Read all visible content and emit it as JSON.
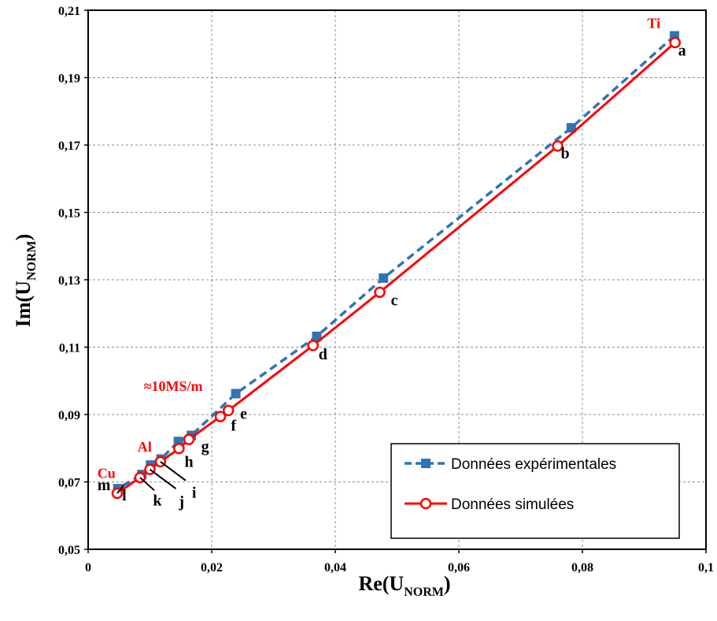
{
  "chart_data": {
    "type": "line",
    "xlabel_main": "Re(U",
    "xlabel_sub": "NORM",
    "xlabel_end": ")",
    "ylabel_main": "Im(U",
    "ylabel_sub": "NORM",
    "ylabel_end": ")",
    "xlim": [
      0,
      0.1
    ],
    "ylim": [
      0.05,
      0.21
    ],
    "x_ticks": [
      {
        "v": 0,
        "label": "0"
      },
      {
        "v": 0.02,
        "label": "0,02"
      },
      {
        "v": 0.04,
        "label": "0,04"
      },
      {
        "v": 0.06,
        "label": "0,06"
      },
      {
        "v": 0.08,
        "label": "0,08"
      },
      {
        "v": 0.1,
        "label": "0,1"
      }
    ],
    "y_ticks": [
      {
        "v": 0.05,
        "label": "0,05"
      },
      {
        "v": 0.07,
        "label": "0,07"
      },
      {
        "v": 0.09,
        "label": "0,09"
      },
      {
        "v": 0.11,
        "label": "0,11"
      },
      {
        "v": 0.13,
        "label": "0,13"
      },
      {
        "v": 0.15,
        "label": "0,15"
      },
      {
        "v": 0.17,
        "label": "0,17"
      },
      {
        "v": 0.19,
        "label": "0,19"
      },
      {
        "v": 0.21,
        "label": "0,21"
      }
    ],
    "grid": true,
    "legend_position": "bottom-right",
    "series": [
      {
        "name": "Données expérimentales",
        "color": "#2e75b6",
        "line_style": "dashed",
        "marker": "square",
        "x": [
          0.0949,
          0.0782,
          0.0478,
          0.037,
          0.0239,
          0.0167,
          0.0146,
          0.0118,
          0.0101,
          0.0087,
          0.0048
        ],
        "y": [
          0.2024,
          0.1751,
          0.1305,
          0.1132,
          0.0962,
          0.0838,
          0.082,
          0.0768,
          0.075,
          0.0722,
          0.068
        ]
      },
      {
        "name": "Données simulées",
        "color": "#ff0000",
        "line_style": "solid",
        "marker": "open-circle",
        "x": [
          0.095,
          0.076,
          0.0472,
          0.0364,
          0.0227,
          0.0214,
          0.0163,
          0.0147,
          0.0117,
          0.01,
          0.0084,
          0.0047
        ],
        "y": [
          0.2004,
          0.1697,
          0.1263,
          0.1105,
          0.0912,
          0.0894,
          0.0826,
          0.0799,
          0.076,
          0.0737,
          0.0713,
          0.0666
        ]
      }
    ],
    "point_labels": [
      {
        "text": "a",
        "x": 0.0955,
        "y": 0.1965
      },
      {
        "text": "b",
        "x": 0.0765,
        "y": 0.166
      },
      {
        "text": "c",
        "x": 0.049,
        "y": 0.1224
      },
      {
        "text": "d",
        "x": 0.0373,
        "y": 0.1064
      },
      {
        "text": "e",
        "x": 0.0246,
        "y": 0.0887
      },
      {
        "text": "f",
        "x": 0.0231,
        "y": 0.0852
      },
      {
        "text": "g",
        "x": 0.0183,
        "y": 0.079
      },
      {
        "text": "h",
        "x": 0.0156,
        "y": 0.0745
      },
      {
        "text": "i",
        "x": 0.0168,
        "y": 0.0653
      },
      {
        "text": "j",
        "x": 0.0147,
        "y": 0.0626
      },
      {
        "text": "k",
        "x": 0.0105,
        "y": 0.063
      },
      {
        "text": "l",
        "x": 0.0055,
        "y": 0.0645
      },
      {
        "text": "m",
        "x": 0.0015,
        "y": 0.0675
      }
    ],
    "leader_lines": [
      {
        "x1": 0.0117,
        "y1": 0.076,
        "x2": 0.0158,
        "y2": 0.0704
      },
      {
        "x1": 0.01,
        "y1": 0.0737,
        "x2": 0.0142,
        "y2": 0.068
      },
      {
        "x1": 0.0084,
        "y1": 0.0713,
        "x2": 0.0107,
        "y2": 0.0675
      },
      {
        "x1": 0.0047,
        "y1": 0.0666,
        "x2": 0.0058,
        "y2": 0.069
      }
    ],
    "annotations": [
      {
        "text": "Ti",
        "x": 0.0905,
        "y": 0.2047
      },
      {
        "text": "≈10MS/m",
        "x": 0.009,
        "y": 0.097
      },
      {
        "text": "Al",
        "x": 0.008,
        "y": 0.079
      },
      {
        "text": "Cu",
        "x": 0.0015,
        "y": 0.0712
      }
    ]
  }
}
